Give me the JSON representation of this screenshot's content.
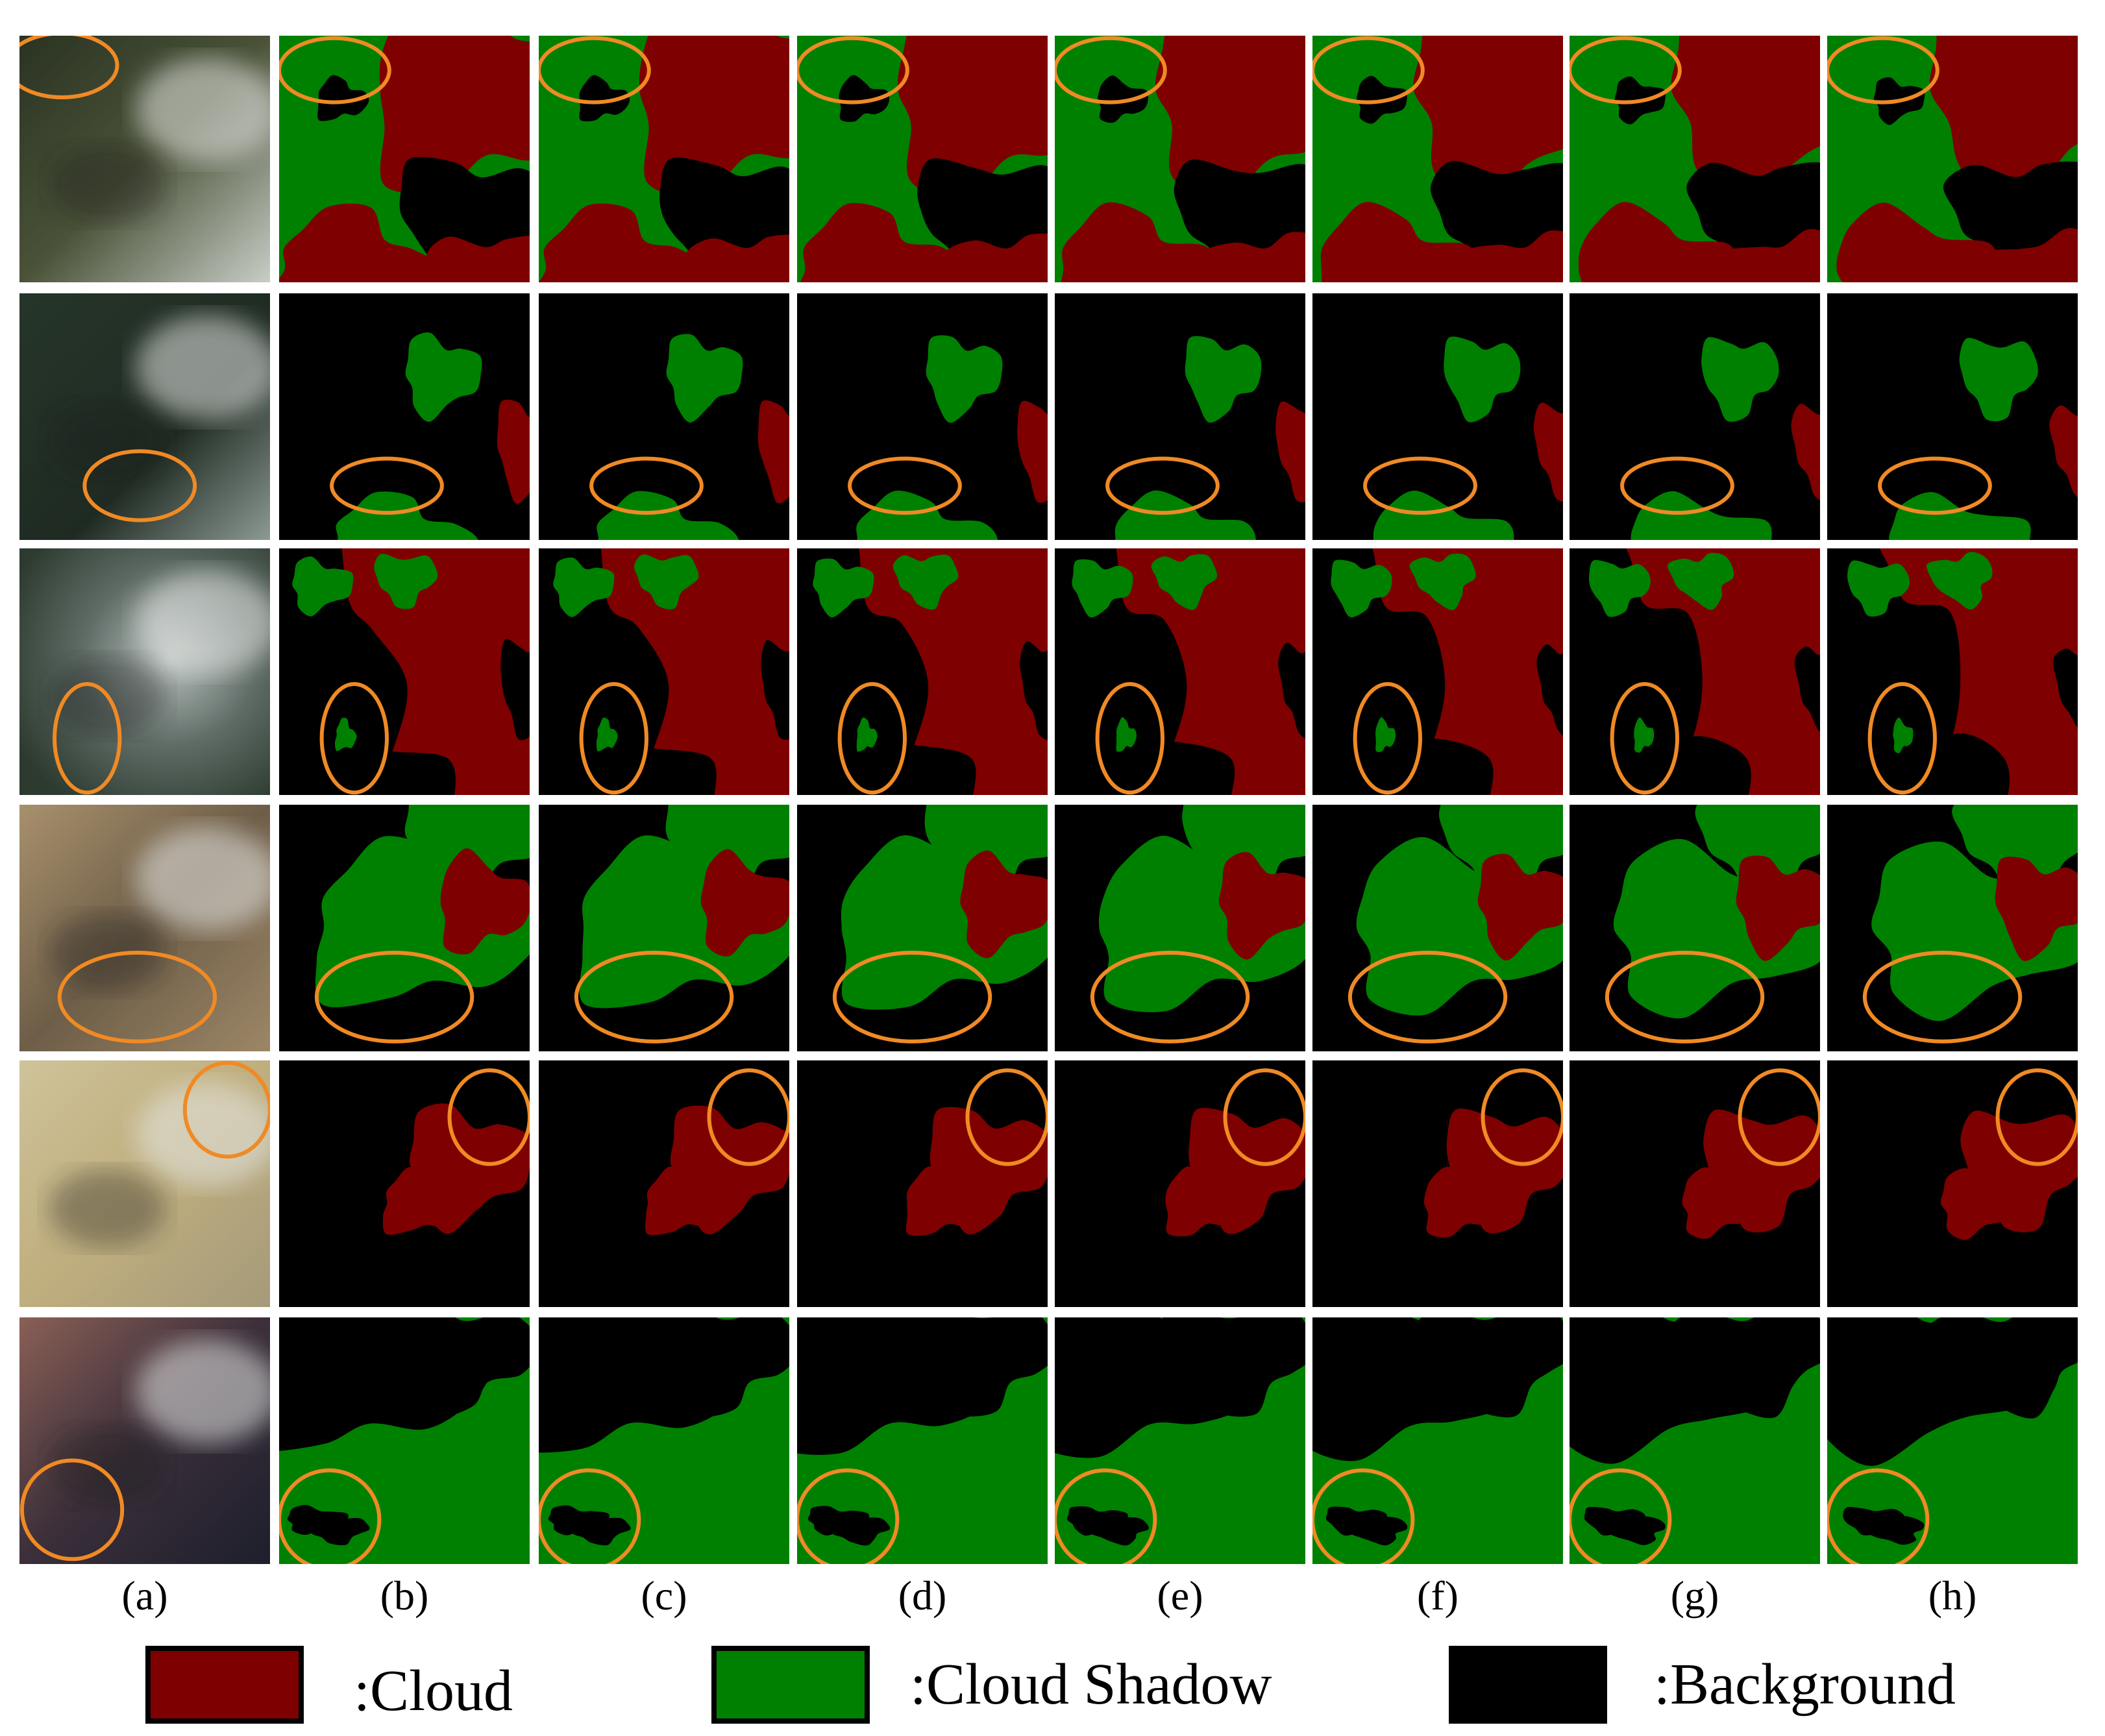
{
  "colors": {
    "cloud": "#7f0000",
    "cloud_shadow": "#008000",
    "background": "#000000",
    "highlight_ellipse": "#f08a24"
  },
  "column_labels": [
    "(a)",
    "(b)",
    "(c)",
    "(d)",
    "(e)",
    "(f)",
    "(g)",
    "(h)"
  ],
  "legend": [
    {
      "key": "cloud",
      "label": ":Cloud",
      "color": "#7f0000"
    },
    {
      "key": "cloud_shadow",
      "label": ":Cloud Shadow",
      "color": "#008000"
    },
    {
      "key": "background",
      "label": ":Background",
      "color": "#000000"
    }
  ],
  "rows": 6
}
